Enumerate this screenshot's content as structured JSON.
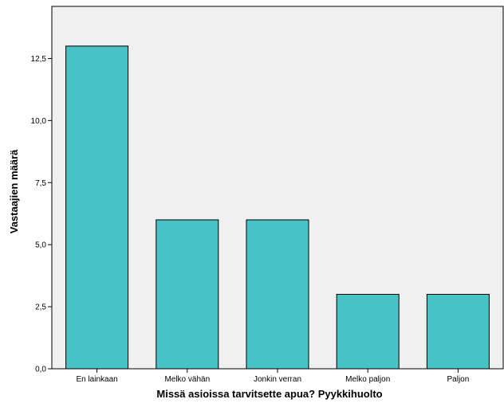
{
  "chart_data": {
    "type": "bar",
    "categories": [
      "En lainkaan",
      "Melko vähän",
      "Jonkin verran",
      "Melko paljon",
      "Paljon"
    ],
    "values": [
      13,
      6,
      6,
      3,
      3
    ],
    "xlabel": "Missä asioissa tarvitsette apua? Pyykkihuolto",
    "ylabel": "Vastaajien määrä",
    "ylim": [
      0,
      14.6
    ],
    "yticks": [
      0,
      2.5,
      5,
      7.5,
      10,
      12.5
    ],
    "ytick_labels": [
      "0,0",
      "2,5",
      "5,0",
      "7,5",
      "10,0",
      "12,5"
    ],
    "grid": false,
    "colors": {
      "plot_background": "#f0f0f0",
      "bar_fill": "#48c2c5",
      "bar_stroke": "#000000"
    }
  }
}
